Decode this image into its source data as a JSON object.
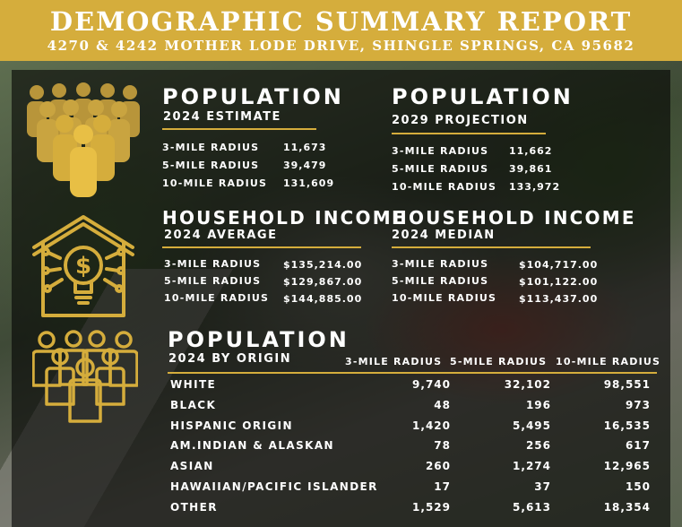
{
  "header": {
    "title": "DEMOGRAPHIC SUMMARY REPORT",
    "address": "4270 & 4242 MOTHER LODE DRIVE, SHINGLE SPRINGS, CA 95682"
  },
  "colors": {
    "accent": "#d5ad3c",
    "panel": "#000000"
  },
  "icons": [
    "people-group-icon",
    "house-lightbulb-dollar-icon",
    "people-outline-icon"
  ],
  "pop2024": {
    "title": "POPULATION",
    "subtitle": "2024 ESTIMATE",
    "rows": [
      {
        "label": "3-MILE RADIUS",
        "value": "11,673"
      },
      {
        "label": "5-MILE RADIUS",
        "value": "39,479"
      },
      {
        "label": "10-MILE RADIUS",
        "value": "131,609"
      }
    ]
  },
  "pop2029": {
    "title": "POPULATION",
    "subtitle": "2029 PROJECTION",
    "rows": [
      {
        "label": "3-MILE RADIUS",
        "value": "11,662"
      },
      {
        "label": "5-MILE RADIUS",
        "value": "39,861"
      },
      {
        "label": "10-MILE RADIUS",
        "value": "133,972"
      }
    ]
  },
  "incAvg": {
    "title": "HOUSEHOLD INCOME",
    "subtitle": "2024 AVERAGE",
    "rows": [
      {
        "label": "3-MILE RADIUS",
        "value": "$135,214.00"
      },
      {
        "label": "5-MILE RADIUS",
        "value": "$129,867.00"
      },
      {
        "label": "10-MILE RADIUS",
        "value": "$144,885.00"
      }
    ]
  },
  "incMed": {
    "title": "HOUSEHOLD INCOME",
    "subtitle": "2024 MEDIAN",
    "rows": [
      {
        "label": "3-MILE RADIUS",
        "value": "$104,717.00"
      },
      {
        "label": "5-MILE RADIUS",
        "value": "$101,122.00"
      },
      {
        "label": "10-MILE RADIUS",
        "value": "$113,437.00"
      }
    ]
  },
  "origin": {
    "title": "POPULATION",
    "subtitle": "2024 BY ORIGIN",
    "columns": [
      "3-MILE RADIUS",
      "5-MILE RADIUS",
      "10-MILE RADIUS"
    ],
    "rows": [
      {
        "label": "WHITE",
        "values": [
          "9,740",
          "32,102",
          "98,551"
        ]
      },
      {
        "label": "BLACK",
        "values": [
          "48",
          "196",
          "973"
        ]
      },
      {
        "label": "HISPANIC ORIGIN",
        "values": [
          "1,420",
          "5,495",
          "16,535"
        ]
      },
      {
        "label": "AM.INDIAN & ALASKAN",
        "values": [
          "78",
          "256",
          "617"
        ]
      },
      {
        "label": "ASIAN",
        "values": [
          "260",
          "1,274",
          "12,965"
        ]
      },
      {
        "label": "HAWAIIAN/PACIFIC ISLANDER",
        "values": [
          "17",
          "37",
          "150"
        ]
      },
      {
        "label": "OTHER",
        "values": [
          "1,529",
          "5,613",
          "18,354"
        ]
      }
    ]
  }
}
